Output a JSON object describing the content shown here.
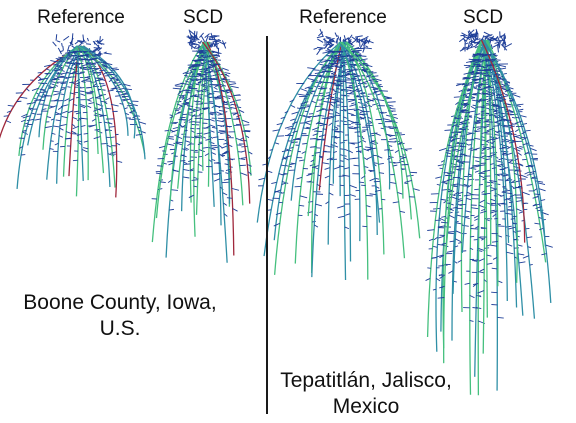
{
  "panels": [
    {
      "location_line1": "Boone County, Iowa,",
      "location_line2": "U.S.",
      "left_label": "Reference",
      "right_label": "SCD"
    },
    {
      "location_line1": "Tepatitlán, Jalisco,",
      "location_line2": "Mexico",
      "left_label": "Reference",
      "right_label": "SCD"
    }
  ],
  "colors": {
    "root_lateral": "#1f3f98",
    "root_main": "#2f8fa6",
    "root_tip": "#45c07e",
    "root_highlight": "#a0283c",
    "divider": "#1a1a1a",
    "background": "#ffffff"
  }
}
